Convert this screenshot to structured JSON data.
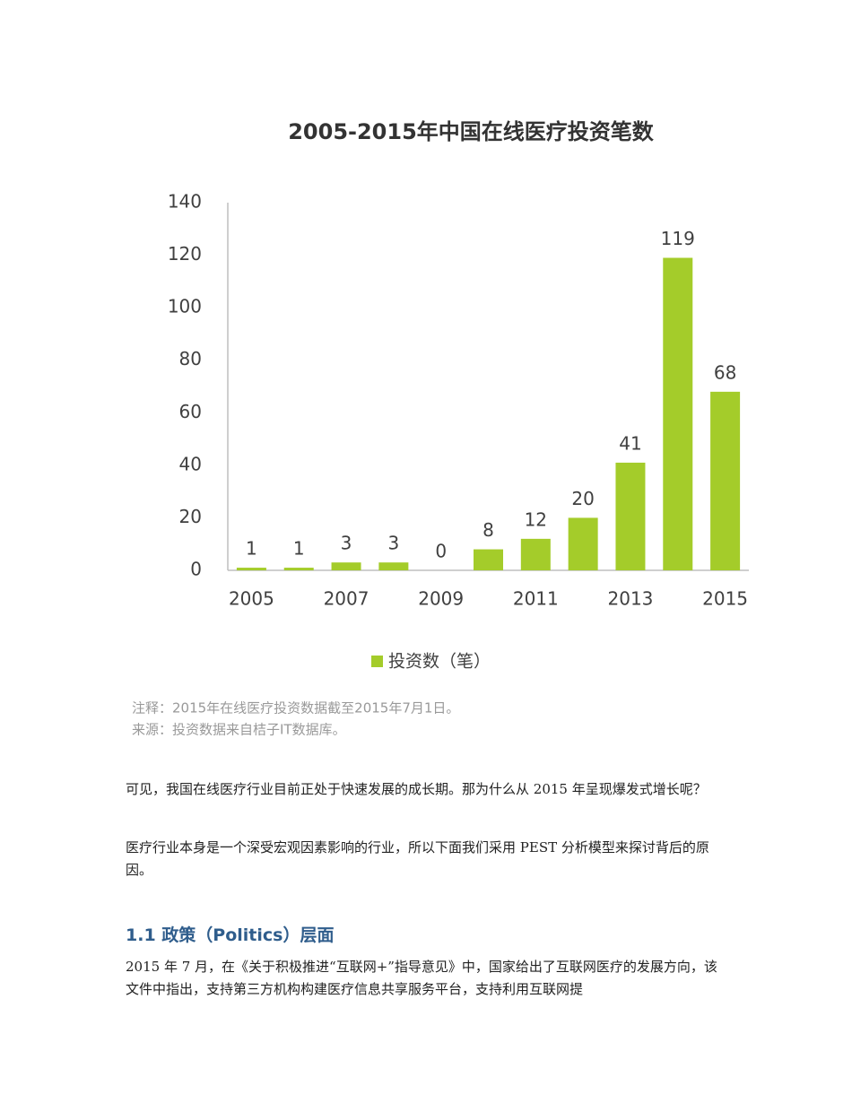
{
  "chart_data": {
    "type": "bar",
    "title": "2005-2015年中国在线医疗投资笔数",
    "categories": [
      "2005",
      null,
      "2007",
      null,
      "2009",
      null,
      "2011",
      null,
      "2013",
      null,
      "2015"
    ],
    "series": [
      {
        "name": "投资数（笔）",
        "color": "#a4cc2a",
        "values": [
          1,
          1,
          3,
          3,
          0,
          8,
          12,
          20,
          41,
          119,
          68
        ]
      }
    ],
    "ylim": [
      0,
      140
    ],
    "yticks": [
      0,
      20,
      40,
      60,
      80,
      100,
      120,
      140
    ],
    "grid": false,
    "notes": [
      "注释：2015年在线医疗投资数据截至2015年7月1日。",
      "来源：投资数据来自桔子IT数据库。"
    ]
  },
  "document": {
    "paragraphs": [
      "可见，我国在线医疗行业目前正处于快速发展的成长期。那为什么从 2015 年呈现爆发式增长呢？",
      "医疗行业本身是一个深受宏观因素影响的行业，所以下面我们采用 PEST 分析模型来探讨背后的原因。"
    ],
    "heading": "1.1 政策（Politics）层面",
    "paragraph_after": "2015 年 7 月，在《关于积极推进“互联网+”指导意见》中，国家给出了互联网医疗的发展方向，该文件中指出，支持第三方机构构建医疗信息共享服务平台，支持利用互联网提"
  }
}
